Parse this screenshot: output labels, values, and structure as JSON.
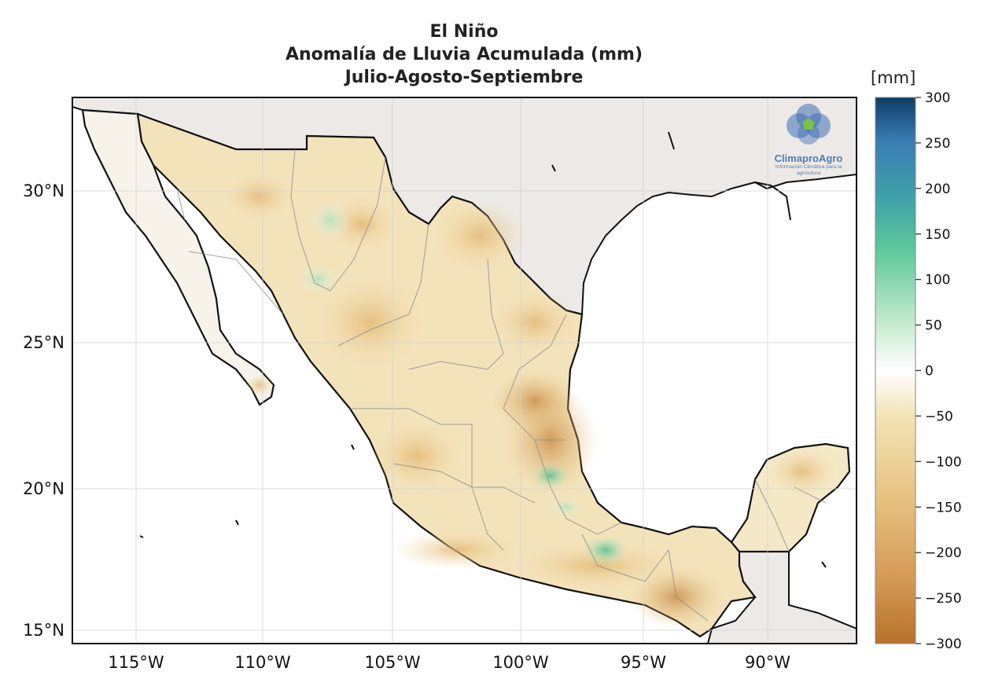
{
  "title": {
    "line1": "El Niño",
    "line2": "Anomalía de Lluvia Acumulada (mm)",
    "line3": "Julio-Agosto-Septiembre"
  },
  "axes": {
    "lon_labels": [
      "115°W",
      "110°W",
      "105°W",
      "100°W",
      "95°W",
      "90°W"
    ],
    "lat_labels": [
      "30°N",
      "25°N",
      "20°N",
      "15°N"
    ],
    "lon_range": [
      -117.5,
      -86.5
    ],
    "lat_range": [
      14.6,
      33.0
    ]
  },
  "colorbar": {
    "unit": "[mm]",
    "ticks": [
      "300",
      "250",
      "200",
      "150",
      "100",
      "50",
      "0",
      "−50",
      "−100",
      "−150",
      "−200",
      "−250",
      "−300"
    ],
    "range": [
      -300,
      300
    ],
    "stops": [
      "#b8712a",
      "#d49a55",
      "#e8c585",
      "#f4e4b8",
      "#ffffff",
      "#c9ecd2",
      "#5ec89a",
      "#3f9fa8",
      "#3a7db5",
      "#0e3d66"
    ]
  },
  "logo": {
    "name": "ClimaproAgro",
    "tagline": "Información Climática para la agricultura"
  },
  "colors": {
    "land_other": "#ece9e6",
    "sea": "#ffffff",
    "dry": "#d9a560",
    "very_dry": "#c07a3a",
    "wet": "#62c79a"
  }
}
